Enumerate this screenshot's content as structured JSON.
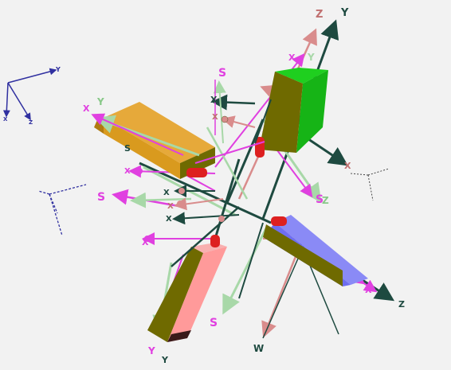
{
  "viewport": {
    "background": "#f2f2f2"
  },
  "colors": {
    "orange_box": "#d99a1e",
    "green_box": "#16b416",
    "blue_box": "#6e6ef0",
    "pink_box": "#ff9a9a",
    "olive_side": "#6f6a00",
    "magenta": "#e040e0",
    "dark_teal": "#1e4a40",
    "pale_green": "#b8e8b8",
    "pink_arrow": "#d98c8c",
    "navy": "#3030a0"
  },
  "labels": {
    "z": "Z",
    "y": "Y",
    "x": "X"
  },
  "icons": {
    "axis_triads": "xyz-axis-icon",
    "joint_spheres": "sphere-icon"
  }
}
